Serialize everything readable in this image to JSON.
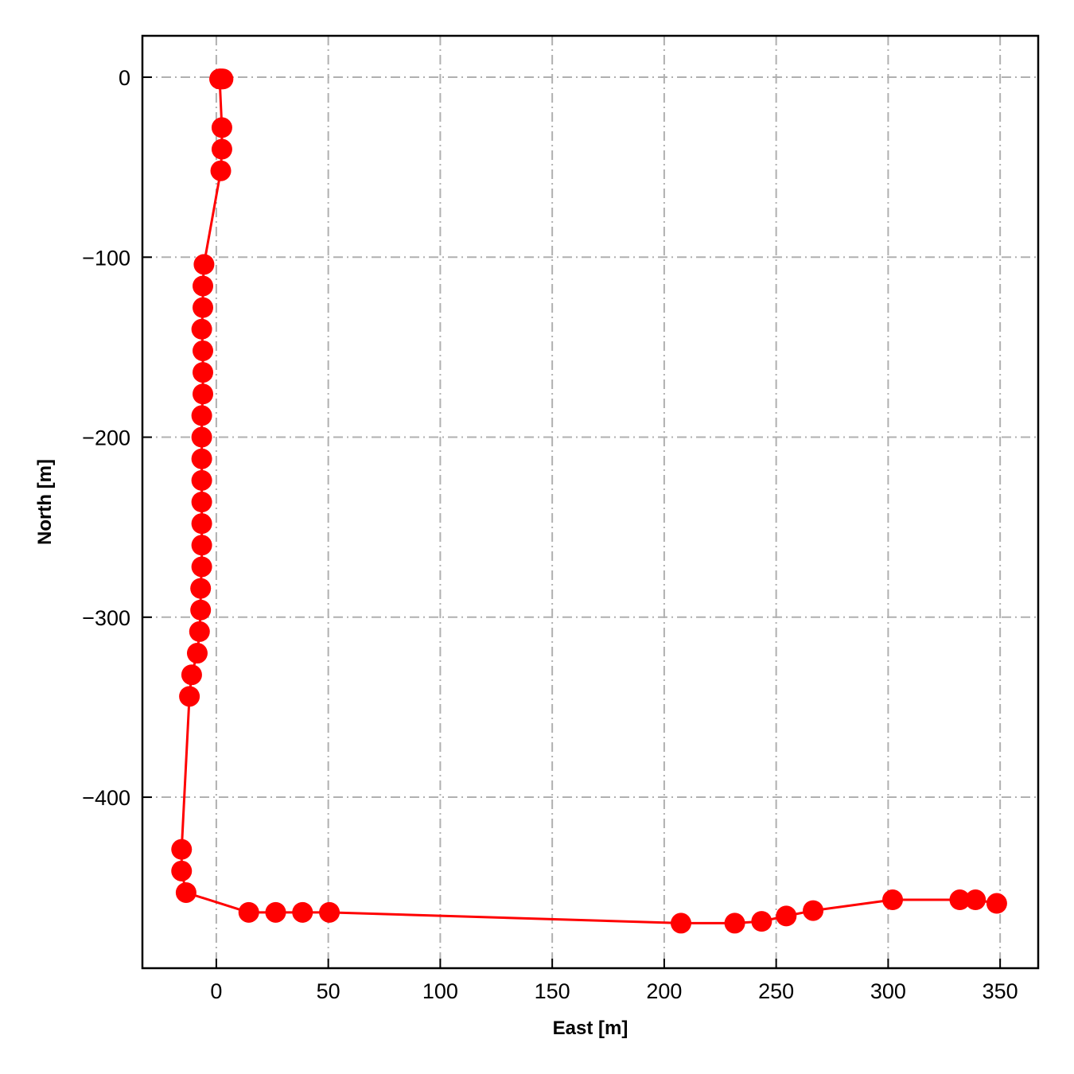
{
  "chart_data": {
    "type": "line",
    "title": "",
    "xlabel": "East [m]",
    "ylabel": "North [m]",
    "xlim": [
      -33,
      367
    ],
    "ylim": [
      -495,
      23
    ],
    "xticks": [
      0,
      50,
      100,
      150,
      200,
      250,
      300,
      350
    ],
    "yticks": [
      0,
      -100,
      -200,
      -300,
      -400
    ],
    "xtick_labels": [
      "0",
      "50",
      "100",
      "150",
      "200",
      "250",
      "300",
      "350"
    ],
    "ytick_labels": [
      "0",
      "−100",
      "−200",
      "−300",
      "−400"
    ],
    "grid": true,
    "grid_style": "dash-dot",
    "legend": "none",
    "colors": {
      "series": "#ff0000",
      "grid": "#b0b0b0",
      "axes": "#000000"
    },
    "series": [
      {
        "marker": "circle",
        "x": [
          3,
          2.5,
          2,
          1.5,
          1.5,
          2.5,
          2.5,
          2,
          -5.5,
          -6,
          -6,
          -6.5,
          -6,
          -6,
          -6,
          -6.5,
          -6.5,
          -6.5,
          -6.5,
          -6.5,
          -6.5,
          -6.5,
          -6.5,
          -7,
          -7,
          -7.5,
          -8.5,
          -11,
          -12,
          -15.5,
          -15.5,
          -13.5,
          14.5,
          26.5,
          38.5,
          50.5,
          207.5,
          231.5,
          243.5,
          254.5,
          266.5,
          302,
          332,
          339,
          348.5
        ],
        "y": [
          -1,
          -1,
          -1,
          -1,
          -1,
          -28,
          -40,
          -52,
          -104,
          -116,
          -128,
          -140,
          -152,
          -164,
          -176,
          -188,
          -200,
          -212,
          -224,
          -236,
          -248,
          -260,
          -272,
          -284,
          -296,
          -308,
          -320,
          -332,
          -344,
          -429,
          -441,
          -453,
          -464,
          -464,
          -464,
          -464,
          -470,
          -470,
          -469,
          -466,
          -463,
          -457,
          -457,
          -457,
          -459
        ]
      }
    ]
  }
}
